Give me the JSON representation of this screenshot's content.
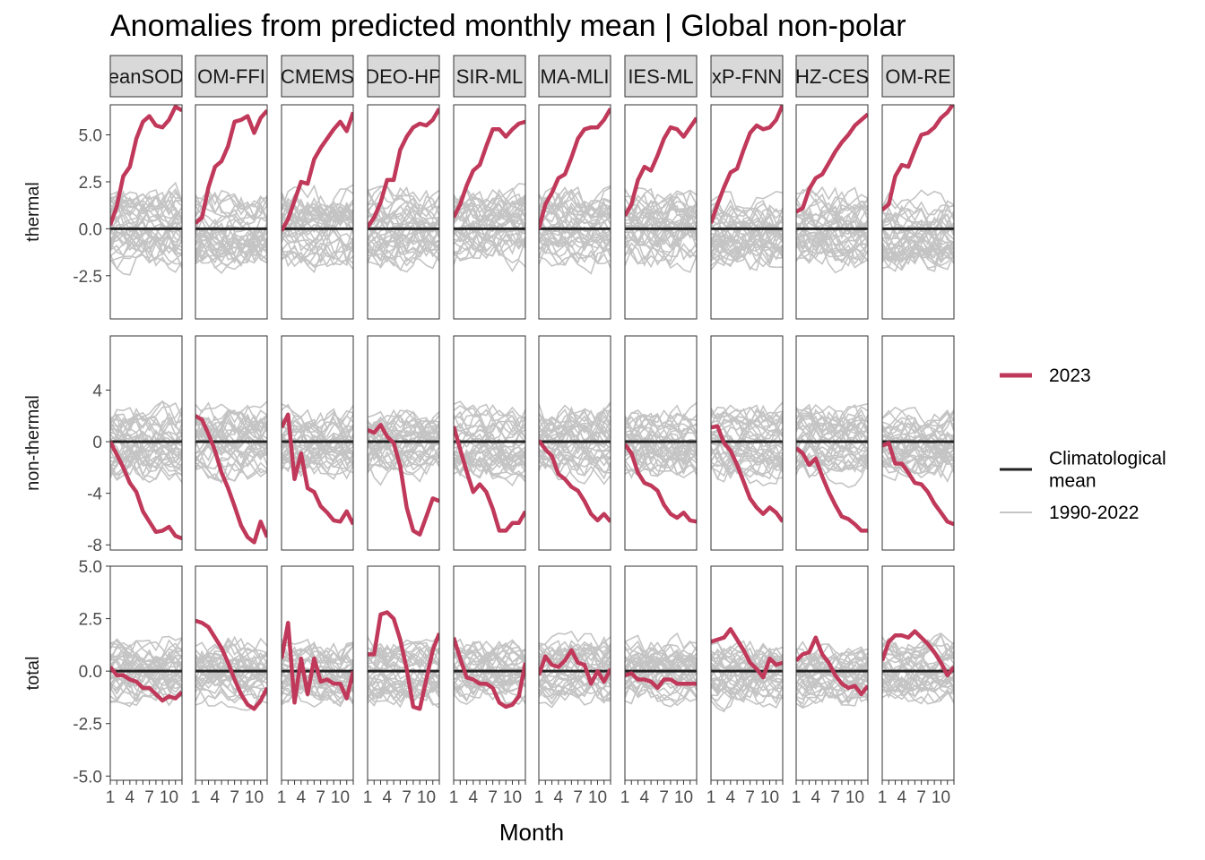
{
  "chart_data": {
    "type": "line",
    "title": "Anomalies from predicted monthly mean | Global non-polar",
    "xlabel": "Month",
    "x_ticks": [
      "1",
      "4",
      "7",
      "10"
    ],
    "x": [
      1,
      2,
      3,
      4,
      5,
      6,
      7,
      8,
      9,
      10,
      11,
      12
    ],
    "xlim": [
      1,
      12
    ],
    "panels": [
      {
        "key": "OceanSODA",
        "label": "eanSOD"
      },
      {
        "key": "JMA-MLR",
        "label": "OM-FFI"
      },
      {
        "key": "CMEMS",
        "label": "CMEMS"
      },
      {
        "key": "LDEO-HPD",
        "label": "DEO-HP"
      },
      {
        "key": "CSIR-ML6",
        "label": "SIR-ML"
      },
      {
        "key": "NIES-MLR",
        "label": "MA-MLI"
      },
      {
        "key": "NIES-ML3",
        "label": "IES-ML"
      },
      {
        "key": "UExP-FNN",
        "label": "xP-FNN"
      },
      {
        "key": "ETHZ-CESM",
        "label": "HZ-CES"
      },
      {
        "key": "MPI-SOM-REG",
        "label": "OM-RE"
      }
    ],
    "rows": [
      {
        "key": "thermal",
        "label": "thermal",
        "ylim": [
          -4.8,
          6.6
        ],
        "y_ticks": [
          5.0,
          2.5,
          0.0,
          -2.5
        ],
        "y_tick_labels": [
          "5.0",
          "2.5",
          "0.0",
          "-2.5"
        ],
        "spread": 1.6
      },
      {
        "key": "non-thermal",
        "label": "non-thermal",
        "ylim": [
          -8.4,
          8.2
        ],
        "y_ticks": [
          4,
          0,
          -4,
          -8
        ],
        "y_tick_labels": [
          "4",
          "0",
          "-4",
          "-8"
        ],
        "spread": 2.2
      },
      {
        "key": "total",
        "label": "total",
        "ylim": [
          -5.2,
          5.0
        ],
        "y_ticks": [
          5.0,
          2.5,
          0.0,
          -2.5,
          -5.0
        ],
        "y_tick_labels": [
          "5.0",
          "2.5",
          "0.0",
          "-2.5",
          "-5.0"
        ],
        "spread": 1.2
      }
    ],
    "series": {
      "anomaly_2023": {
        "name": "2023",
        "values": {
          "thermal": [
            [
              0.2,
              1.2,
              2.8,
              3.3,
              4.8,
              5.7,
              6.0,
              5.5,
              5.4,
              5.8,
              6.5,
              6.3
            ],
            [
              0.3,
              0.6,
              2.2,
              3.3,
              3.6,
              4.4,
              5.7,
              5.8,
              6.0,
              5.1,
              5.9,
              6.3
            ],
            [
              -0.1,
              0.5,
              1.5,
              2.5,
              2.4,
              3.7,
              4.3,
              4.8,
              5.3,
              5.7,
              5.2,
              6.2
            ],
            [
              0.1,
              0.6,
              1.4,
              2.6,
              2.6,
              4.2,
              4.9,
              5.4,
              5.6,
              5.5,
              5.8,
              6.4
            ],
            [
              0.6,
              1.3,
              2.3,
              3.1,
              3.4,
              4.4,
              5.3,
              5.3,
              4.9,
              5.3,
              5.6,
              5.7
            ],
            [
              0.0,
              1.3,
              1.9,
              2.7,
              2.9,
              3.8,
              4.8,
              5.3,
              5.4,
              5.4,
              5.8,
              6.4
            ],
            [
              0.7,
              1.3,
              2.6,
              3.3,
              3.1,
              3.9,
              4.8,
              5.4,
              5.3,
              4.9,
              5.4,
              5.9
            ],
            [
              0.3,
              1.3,
              2.2,
              3.0,
              3.2,
              4.2,
              5.1,
              5.5,
              5.3,
              5.4,
              5.8,
              6.6
            ],
            [
              0.9,
              1.1,
              2.1,
              2.7,
              2.9,
              3.5,
              4.1,
              4.6,
              5.0,
              5.5,
              5.8,
              6.1
            ],
            [
              1.0,
              1.3,
              2.8,
              3.4,
              3.3,
              4.2,
              5.0,
              5.1,
              5.4,
              5.9,
              6.2,
              6.7
            ]
          ],
          "non-thermal": [
            [
              0.0,
              -1.0,
              -2.0,
              -3.2,
              -3.9,
              -5.4,
              -6.2,
              -7.0,
              -6.9,
              -6.6,
              -7.3,
              -7.5
            ],
            [
              2.0,
              1.7,
              0.6,
              -0.7,
              -2.4,
              -3.6,
              -5.0,
              -6.5,
              -7.4,
              -7.8,
              -6.2,
              -7.4
            ],
            [
              1.1,
              2.1,
              -2.9,
              -0.9,
              -3.6,
              -3.9,
              -5.0,
              -5.5,
              -6.1,
              -6.2,
              -5.4,
              -6.4
            ],
            [
              0.9,
              0.7,
              1.3,
              0.4,
              -0.1,
              -1.9,
              -5.1,
              -6.9,
              -7.2,
              -5.8,
              -4.4,
              -4.6
            ],
            [
              1.2,
              -0.6,
              -2.3,
              -3.9,
              -3.3,
              -3.9,
              -5.2,
              -6.9,
              -6.9,
              -6.3,
              -6.3,
              -5.4
            ],
            [
              0.1,
              -0.6,
              -1.1,
              -2.5,
              -2.9,
              -3.5,
              -3.8,
              -4.6,
              -5.6,
              -6.1,
              -5.6,
              -6.2
            ],
            [
              -0.2,
              -0.9,
              -2.4,
              -3.2,
              -3.4,
              -3.8,
              -4.9,
              -5.6,
              -5.9,
              -5.5,
              -6.1,
              -6.2
            ],
            [
              1.1,
              1.2,
              -0.1,
              -0.7,
              -1.8,
              -3.1,
              -4.4,
              -5.1,
              -5.6,
              -5.1,
              -5.5,
              -6.2
            ],
            [
              -0.5,
              -0.9,
              -1.8,
              -1.3,
              -2.7,
              -3.9,
              -4.9,
              -5.8,
              -6.0,
              -6.4,
              -6.9,
              -6.9
            ],
            [
              -0.3,
              -0.1,
              -1.7,
              -1.7,
              -2.4,
              -3.2,
              -3.3,
              -3.9,
              -4.8,
              -5.5,
              -6.2,
              -6.4
            ]
          ],
          "total": [
            [
              0.2,
              -0.2,
              -0.2,
              -0.4,
              -0.5,
              -0.8,
              -0.8,
              -1.1,
              -1.4,
              -1.2,
              -1.3,
              -1.0
            ],
            [
              2.4,
              2.3,
              2.1,
              1.6,
              1.1,
              0.4,
              -0.4,
              -1.1,
              -1.6,
              -1.8,
              -1.4,
              -0.8
            ],
            [
              0.6,
              2.3,
              -1.5,
              0.6,
              -1.1,
              0.6,
              -0.5,
              -0.4,
              -0.6,
              -0.6,
              -1.3,
              0.0
            ],
            [
              0.8,
              0.8,
              2.7,
              2.8,
              2.5,
              1.5,
              0.1,
              -1.7,
              -1.8,
              -0.4,
              1.0,
              1.8
            ],
            [
              1.6,
              0.6,
              -0.3,
              -0.4,
              -0.6,
              -0.6,
              -0.8,
              -1.5,
              -1.7,
              -1.6,
              -1.2,
              0.4
            ],
            [
              -0.2,
              0.7,
              0.3,
              0.2,
              0.5,
              1.0,
              0.4,
              0.3,
              -0.6,
              0.0,
              -0.5,
              0.1
            ],
            [
              -0.2,
              -0.1,
              -0.4,
              -0.4,
              -0.5,
              -0.8,
              -0.4,
              -0.4,
              -0.6,
              -0.6,
              -0.6,
              -0.6
            ],
            [
              1.4,
              1.5,
              1.6,
              2.0,
              1.5,
              1.0,
              0.4,
              0.1,
              -0.3,
              0.6,
              0.3,
              0.4
            ],
            [
              0.5,
              0.8,
              0.9,
              1.6,
              0.8,
              0.4,
              -0.2,
              -0.6,
              -0.8,
              -0.7,
              -1.1,
              -0.7
            ],
            [
              0.5,
              1.4,
              1.7,
              1.7,
              1.6,
              1.9,
              1.6,
              1.3,
              0.9,
              0.4,
              -0.2,
              0.2
            ]
          ]
        }
      },
      "climatological_mean": {
        "name": "Climatological mean",
        "value": 0.0
      },
      "past_years": {
        "name": "1990-2022",
        "count": 33
      }
    },
    "legend": {
      "position": "right",
      "items": [
        {
          "label": "2023",
          "color": "#c0395a"
        },
        {
          "label": "Climatological mean",
          "label_lines": [
            "Climatological",
            "mean"
          ],
          "color": "#222222"
        },
        {
          "label": "1990-2022",
          "color": "#c4c4c4"
        }
      ]
    },
    "colors": {
      "y2023": "#c0395a",
      "clim": "#222222",
      "past": "#c4c4c4",
      "strip_fill": "#d9d9d9",
      "frame": "#333333"
    }
  }
}
